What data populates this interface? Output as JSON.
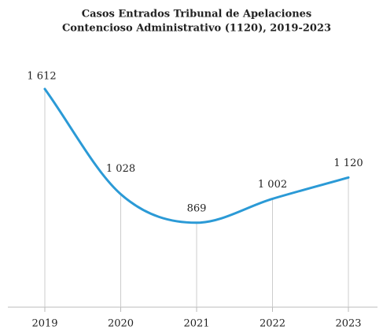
{
  "chart_data": {
    "type": "line",
    "title": [
      "Casos Entrados Tribunal de Apelaciones",
      "Contencioso Administrativo (1120),  2019-2023"
    ],
    "categories": [
      "2019",
      "2020",
      "2021",
      "2022",
      "2023"
    ],
    "series": [
      {
        "name": "Casos Entrados",
        "color": "#2b9ad6",
        "values": [
          1612,
          1028,
          869,
          1002,
          1120
        ],
        "value_labels": [
          "1 612",
          "1 028",
          "869",
          "1 002",
          "1 120"
        ]
      }
    ],
    "ylim": [
      400,
      1800
    ]
  }
}
